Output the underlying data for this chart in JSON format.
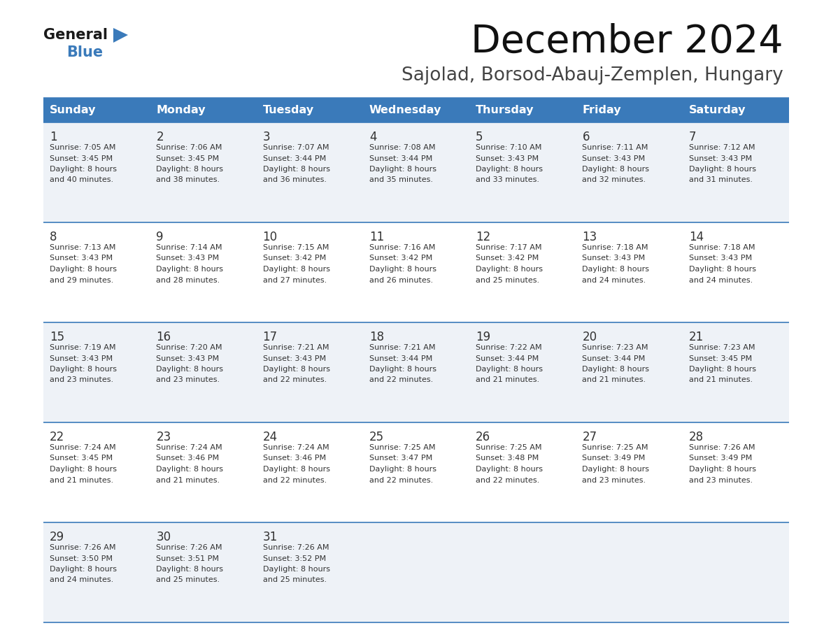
{
  "title": "December 2024",
  "subtitle": "Sajolad, Borsod-Abauj-Zemplen, Hungary",
  "days_of_week": [
    "Sunday",
    "Monday",
    "Tuesday",
    "Wednesday",
    "Thursday",
    "Friday",
    "Saturday"
  ],
  "header_bg": "#3a7aba",
  "header_text": "#ffffff",
  "row_bg_odd": "#eef2f7",
  "row_bg_even": "#ffffff",
  "border_color": "#3a7aba",
  "text_color": "#333333",
  "calendar": [
    [
      {
        "day": 1,
        "sunrise": "7:05 AM",
        "sunset": "3:45 PM",
        "daylight_line1": "Daylight: 8 hours",
        "daylight_line2": "and 40 minutes."
      },
      {
        "day": 2,
        "sunrise": "7:06 AM",
        "sunset": "3:45 PM",
        "daylight_line1": "Daylight: 8 hours",
        "daylight_line2": "and 38 minutes."
      },
      {
        "day": 3,
        "sunrise": "7:07 AM",
        "sunset": "3:44 PM",
        "daylight_line1": "Daylight: 8 hours",
        "daylight_line2": "and 36 minutes."
      },
      {
        "day": 4,
        "sunrise": "7:08 AM",
        "sunset": "3:44 PM",
        "daylight_line1": "Daylight: 8 hours",
        "daylight_line2": "and 35 minutes."
      },
      {
        "day": 5,
        "sunrise": "7:10 AM",
        "sunset": "3:43 PM",
        "daylight_line1": "Daylight: 8 hours",
        "daylight_line2": "and 33 minutes."
      },
      {
        "day": 6,
        "sunrise": "7:11 AM",
        "sunset": "3:43 PM",
        "daylight_line1": "Daylight: 8 hours",
        "daylight_line2": "and 32 minutes."
      },
      {
        "day": 7,
        "sunrise": "7:12 AM",
        "sunset": "3:43 PM",
        "daylight_line1": "Daylight: 8 hours",
        "daylight_line2": "and 31 minutes."
      }
    ],
    [
      {
        "day": 8,
        "sunrise": "7:13 AM",
        "sunset": "3:43 PM",
        "daylight_line1": "Daylight: 8 hours",
        "daylight_line2": "and 29 minutes."
      },
      {
        "day": 9,
        "sunrise": "7:14 AM",
        "sunset": "3:43 PM",
        "daylight_line1": "Daylight: 8 hours",
        "daylight_line2": "and 28 minutes."
      },
      {
        "day": 10,
        "sunrise": "7:15 AM",
        "sunset": "3:42 PM",
        "daylight_line1": "Daylight: 8 hours",
        "daylight_line2": "and 27 minutes."
      },
      {
        "day": 11,
        "sunrise": "7:16 AM",
        "sunset": "3:42 PM",
        "daylight_line1": "Daylight: 8 hours",
        "daylight_line2": "and 26 minutes."
      },
      {
        "day": 12,
        "sunrise": "7:17 AM",
        "sunset": "3:42 PM",
        "daylight_line1": "Daylight: 8 hours",
        "daylight_line2": "and 25 minutes."
      },
      {
        "day": 13,
        "sunrise": "7:18 AM",
        "sunset": "3:43 PM",
        "daylight_line1": "Daylight: 8 hours",
        "daylight_line2": "and 24 minutes."
      },
      {
        "day": 14,
        "sunrise": "7:18 AM",
        "sunset": "3:43 PM",
        "daylight_line1": "Daylight: 8 hours",
        "daylight_line2": "and 24 minutes."
      }
    ],
    [
      {
        "day": 15,
        "sunrise": "7:19 AM",
        "sunset": "3:43 PM",
        "daylight_line1": "Daylight: 8 hours",
        "daylight_line2": "and 23 minutes."
      },
      {
        "day": 16,
        "sunrise": "7:20 AM",
        "sunset": "3:43 PM",
        "daylight_line1": "Daylight: 8 hours",
        "daylight_line2": "and 23 minutes."
      },
      {
        "day": 17,
        "sunrise": "7:21 AM",
        "sunset": "3:43 PM",
        "daylight_line1": "Daylight: 8 hours",
        "daylight_line2": "and 22 minutes."
      },
      {
        "day": 18,
        "sunrise": "7:21 AM",
        "sunset": "3:44 PM",
        "daylight_line1": "Daylight: 8 hours",
        "daylight_line2": "and 22 minutes."
      },
      {
        "day": 19,
        "sunrise": "7:22 AM",
        "sunset": "3:44 PM",
        "daylight_line1": "Daylight: 8 hours",
        "daylight_line2": "and 21 minutes."
      },
      {
        "day": 20,
        "sunrise": "7:23 AM",
        "sunset": "3:44 PM",
        "daylight_line1": "Daylight: 8 hours",
        "daylight_line2": "and 21 minutes."
      },
      {
        "day": 21,
        "sunrise": "7:23 AM",
        "sunset": "3:45 PM",
        "daylight_line1": "Daylight: 8 hours",
        "daylight_line2": "and 21 minutes."
      }
    ],
    [
      {
        "day": 22,
        "sunrise": "7:24 AM",
        "sunset": "3:45 PM",
        "daylight_line1": "Daylight: 8 hours",
        "daylight_line2": "and 21 minutes."
      },
      {
        "day": 23,
        "sunrise": "7:24 AM",
        "sunset": "3:46 PM",
        "daylight_line1": "Daylight: 8 hours",
        "daylight_line2": "and 21 minutes."
      },
      {
        "day": 24,
        "sunrise": "7:24 AM",
        "sunset": "3:46 PM",
        "daylight_line1": "Daylight: 8 hours",
        "daylight_line2": "and 22 minutes."
      },
      {
        "day": 25,
        "sunrise": "7:25 AM",
        "sunset": "3:47 PM",
        "daylight_line1": "Daylight: 8 hours",
        "daylight_line2": "and 22 minutes."
      },
      {
        "day": 26,
        "sunrise": "7:25 AM",
        "sunset": "3:48 PM",
        "daylight_line1": "Daylight: 8 hours",
        "daylight_line2": "and 22 minutes."
      },
      {
        "day": 27,
        "sunrise": "7:25 AM",
        "sunset": "3:49 PM",
        "daylight_line1": "Daylight: 8 hours",
        "daylight_line2": "and 23 minutes."
      },
      {
        "day": 28,
        "sunrise": "7:26 AM",
        "sunset": "3:49 PM",
        "daylight_line1": "Daylight: 8 hours",
        "daylight_line2": "and 23 minutes."
      }
    ],
    [
      {
        "day": 29,
        "sunrise": "7:26 AM",
        "sunset": "3:50 PM",
        "daylight_line1": "Daylight: 8 hours",
        "daylight_line2": "and 24 minutes."
      },
      {
        "day": 30,
        "sunrise": "7:26 AM",
        "sunset": "3:51 PM",
        "daylight_line1": "Daylight: 8 hours",
        "daylight_line2": "and 25 minutes."
      },
      {
        "day": 31,
        "sunrise": "7:26 AM",
        "sunset": "3:52 PM",
        "daylight_line1": "Daylight: 8 hours",
        "daylight_line2": "and 25 minutes."
      },
      null,
      null,
      null,
      null
    ]
  ],
  "logo_general_color": "#1a1a1a",
  "logo_blue_color": "#3a7aba",
  "logo_triangle_color": "#3a7aba"
}
